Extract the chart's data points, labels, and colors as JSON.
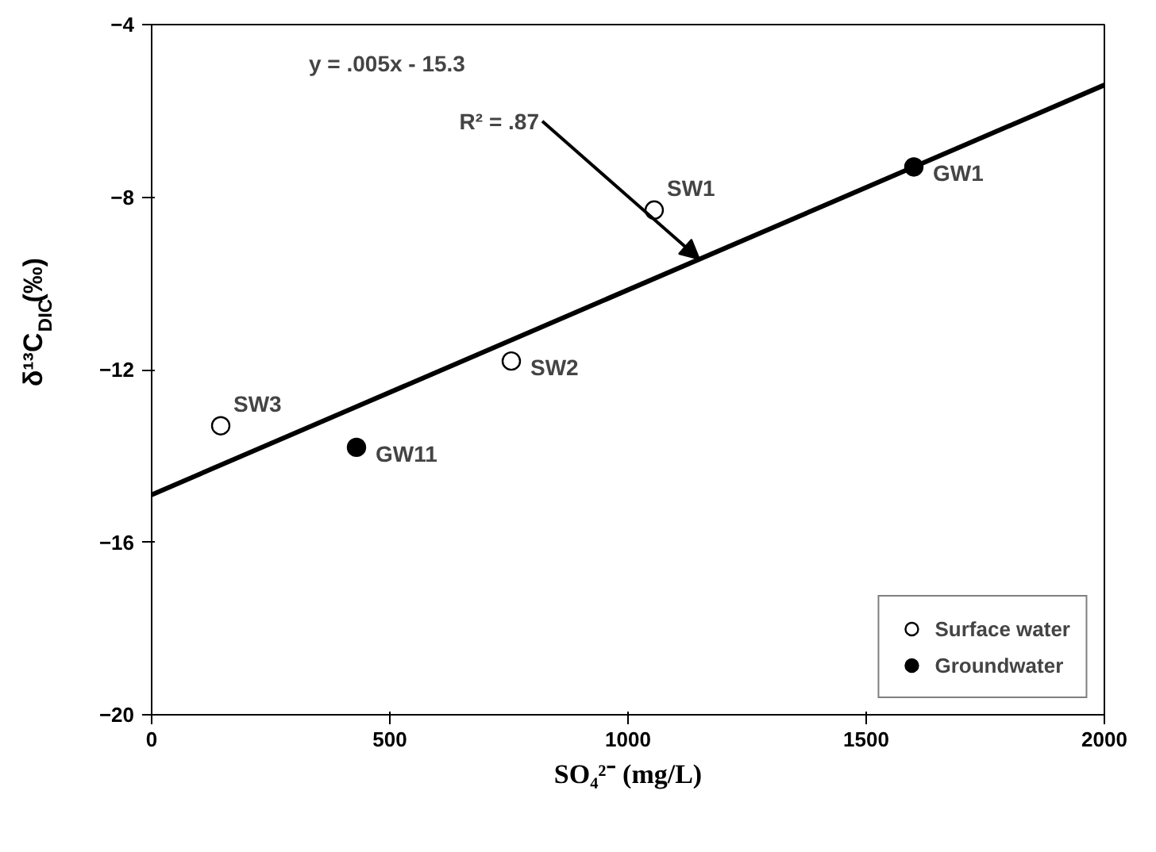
{
  "chart_data": {
    "type": "scatter",
    "xlabel": "SO₄²⁻ (mg/L)",
    "ylabel": "δ¹³C$_{DIC}$(‰)",
    "xlim": [
      0,
      2000
    ],
    "ylim": [
      -20,
      -4
    ],
    "xticks": [
      0,
      500,
      1000,
      1500,
      2000
    ],
    "yticks": [
      -20,
      -16,
      -12,
      -8,
      -4
    ],
    "grid": false,
    "legend": "bottom right",
    "marker": "circle",
    "series": [
      {
        "name": "Surface water",
        "color": "#ffffff",
        "x": [
          145,
          755,
          1055
        ],
        "values": [
          -13.3,
          -11.8,
          -8.3
        ]
      },
      {
        "name": "Groundwater",
        "color": "#000000",
        "x": [
          430,
          1600
        ],
        "values": [
          -13.8,
          -7.3
        ]
      },
      {
        "type": "line",
        "color": "#000000",
        "marker": "none",
        "x": [
          0,
          2000
        ],
        "values": [
          -14.9,
          -5.4
        ]
      }
    ],
    "annotations": [
      "y = .005x - 15.3",
      {
        "text": "R² = .87",
        "x": 1150,
        "y": -9.44
      },
      {
        "text": "SW3",
        "x": 145,
        "y": -13.3
      },
      {
        "text": "SW2",
        "x": 755,
        "y": -11.8
      },
      {
        "text": "SW1",
        "x": 1055,
        "y": -8.3
      },
      {
        "text": "GW11",
        "x": 430,
        "y": -13.8
      },
      {
        "text": "GW1",
        "x": 1600,
        "y": -7.3
      }
    ]
  }
}
